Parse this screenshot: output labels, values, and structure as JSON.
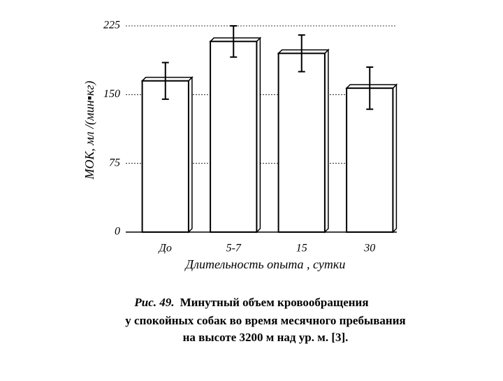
{
  "chart_data": {
    "type": "bar",
    "y_label": "МОК, мл /(мин▪кг)",
    "x_label": "Длительность опыта , сутки",
    "figure_label": "Рис. 49.",
    "caption": [
      "Минутный  объем  кровообращения",
      "у  спокойных  собак  во  время   месячного  пребывания",
      "на  высоте  3200 м  над  ур. м.  [3]."
    ],
    "categories": [
      "До",
      "5-7",
      "15",
      "30"
    ],
    "values": [
      165,
      208,
      195,
      157
    ],
    "errors": [
      20,
      17,
      20,
      23
    ],
    "color": "#ffffff",
    "ylim": [
      0,
      225
    ],
    "yticks": [
      0,
      75,
      150,
      225
    ],
    "grid": true
  }
}
